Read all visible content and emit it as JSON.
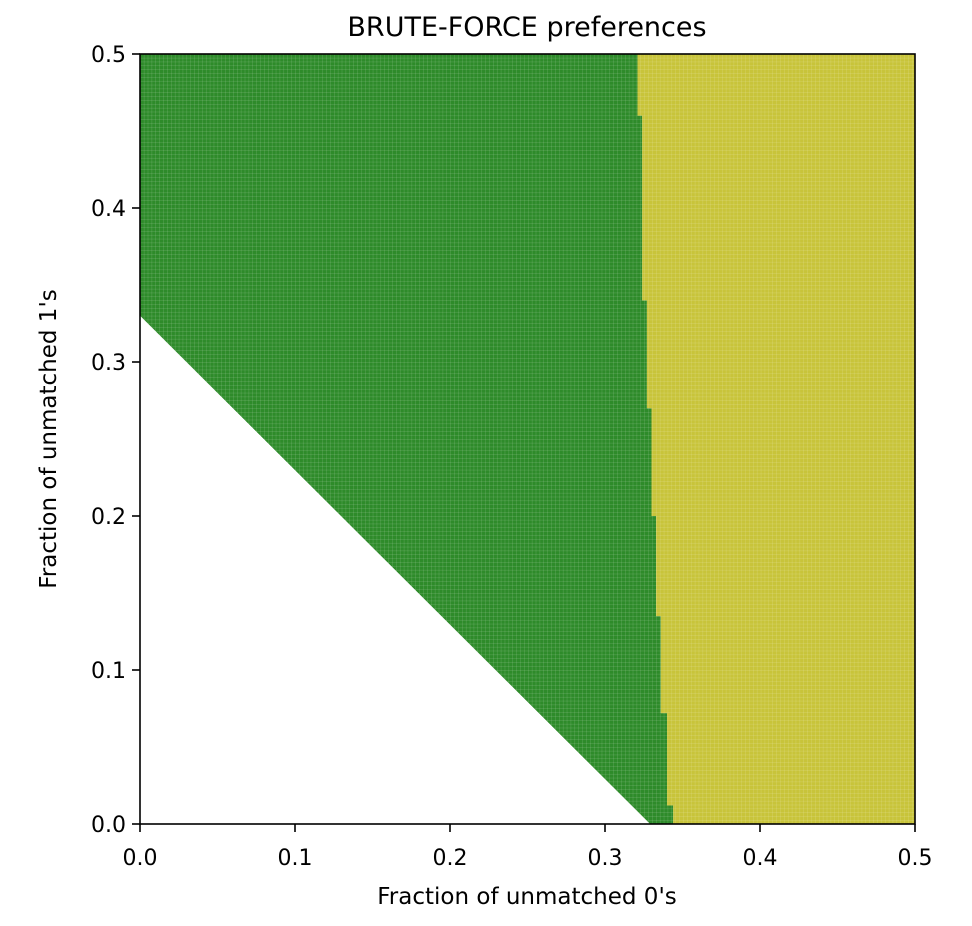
{
  "chart_data": {
    "type": "heatmap",
    "title": "BRUTE-FORCE preferences",
    "xlabel": "Fraction of unmatched 0's",
    "ylabel": "Fraction of unmatched 1's",
    "xlim": [
      0.0,
      0.5
    ],
    "ylim": [
      0.0,
      0.5
    ],
    "xticks": [
      "0.0",
      "0.1",
      "0.2",
      "0.3",
      "0.4",
      "0.5"
    ],
    "yticks": [
      "0.0",
      "0.1",
      "0.2",
      "0.3",
      "0.4",
      "0.5"
    ],
    "grid": false,
    "legend": "none",
    "regions": [
      {
        "fill": "#2e8b2a",
        "polygon": [
          [
            0.0,
            0.5
          ],
          [
            0.321,
            0.5
          ],
          [
            0.321,
            0.46
          ],
          [
            0.324,
            0.46
          ],
          [
            0.324,
            0.34
          ],
          [
            0.327,
            0.34
          ],
          [
            0.327,
            0.27
          ],
          [
            0.33,
            0.27
          ],
          [
            0.33,
            0.2
          ],
          [
            0.333,
            0.2
          ],
          [
            0.333,
            0.135
          ],
          [
            0.336,
            0.135
          ],
          [
            0.336,
            0.072
          ],
          [
            0.34,
            0.072
          ],
          [
            0.34,
            0.012
          ],
          [
            0.344,
            0.012
          ],
          [
            0.344,
            0.0
          ],
          [
            0.329,
            0.0
          ],
          [
            0.0,
            0.33
          ]
        ]
      },
      {
        "fill": "#c8c43a",
        "polygon": [
          [
            0.321,
            0.5
          ],
          [
            0.5,
            0.5
          ],
          [
            0.5,
            0.0
          ],
          [
            0.344,
            0.0
          ],
          [
            0.344,
            0.012
          ],
          [
            0.34,
            0.012
          ],
          [
            0.34,
            0.072
          ],
          [
            0.336,
            0.072
          ],
          [
            0.336,
            0.135
          ],
          [
            0.333,
            0.135
          ],
          [
            0.333,
            0.2
          ],
          [
            0.33,
            0.2
          ],
          [
            0.33,
            0.27
          ],
          [
            0.327,
            0.27
          ],
          [
            0.327,
            0.34
          ],
          [
            0.324,
            0.34
          ],
          [
            0.324,
            0.46
          ],
          [
            0.321,
            0.46
          ]
        ]
      },
      {
        "fill": "#ffffff",
        "polygon": [
          [
            0.0,
            0.0
          ],
          [
            0.0,
            0.33
          ],
          [
            0.329,
            0.0
          ]
        ]
      }
    ],
    "cell_size": 0.0025
  }
}
